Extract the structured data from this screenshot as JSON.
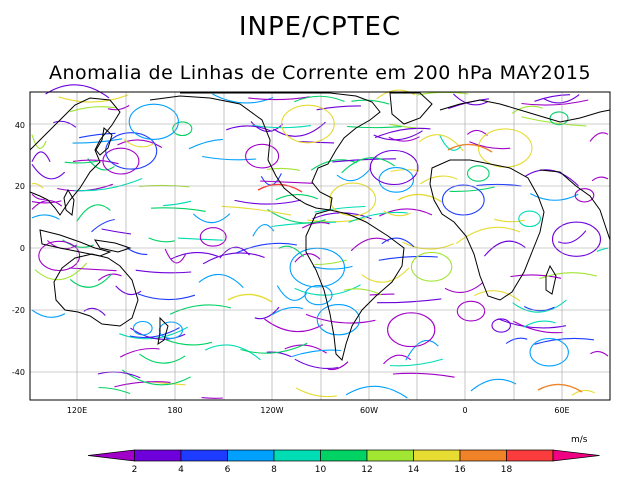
{
  "title": "INPE/CPTEC",
  "subtitle": "Anomalia de Linhas de Corrente em 200 hPa MAY2015",
  "map": {
    "projection": "cylindrical-equidistant",
    "lat_ticks": [
      "40",
      "20",
      "0",
      "-20",
      "-40"
    ],
    "lon_ticks": [
      "120E",
      "180",
      "120W",
      "60W",
      "0",
      "60E"
    ],
    "grid": true,
    "coastline_color": "#000000",
    "grid_color": "#a0a0a0"
  },
  "colorbar": {
    "unit": "m/s",
    "labels": [
      "2",
      "4",
      "6",
      "8",
      "10",
      "12",
      "14",
      "16",
      "18"
    ],
    "colors": [
      "#a000c8",
      "#6e00dc",
      "#1e3cff",
      "#00a0ff",
      "#00dcb4",
      "#00d264",
      "#a0e632",
      "#e6dc32",
      "#f08228",
      "#fa3c3c",
      "#f00082"
    ]
  }
}
